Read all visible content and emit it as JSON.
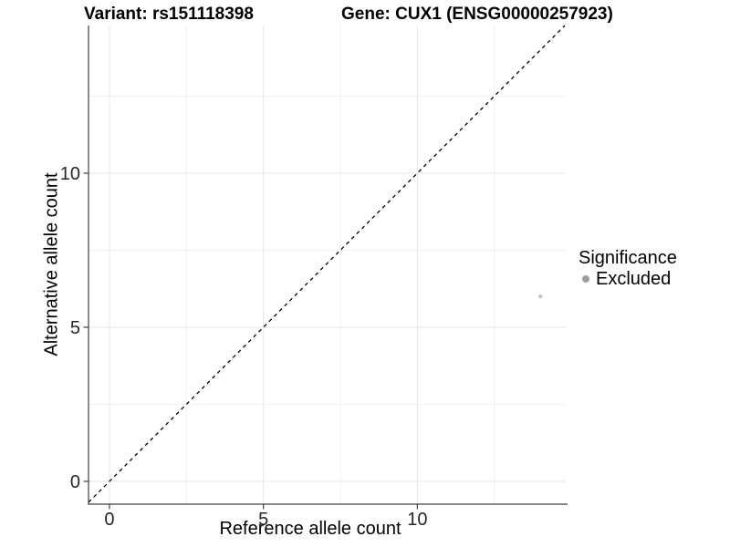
{
  "chart_data": {
    "type": "scatter",
    "titles": {
      "variant": "Variant: rs151118398",
      "gene": "Gene: CUX1 (ENSG00000257923)"
    },
    "xlabel": "Reference allele count",
    "ylabel": "Alternative allele count",
    "xlim": [
      -0.68,
      14.82
    ],
    "ylim": [
      -0.74,
      14.79
    ],
    "x_ticks": [
      0,
      5,
      10
    ],
    "y_ticks": [
      0,
      5,
      10
    ],
    "x_minor_gridlines": [
      2.5,
      7.5,
      12.5
    ],
    "y_minor_gridlines": [
      2.5,
      7.5,
      12.5
    ],
    "grid": "major+minor",
    "points": [
      {
        "x": 14,
        "y": 6,
        "significance": "Excluded",
        "color": "#c2c2c2",
        "radius": 2.2
      }
    ],
    "identity_line": {
      "slope": 1,
      "intercept": 0,
      "style": "dashed",
      "color": "#000000"
    },
    "legend": {
      "title": "Significance",
      "position": "right",
      "entries": [
        {
          "label": "Excluded",
          "color": "#9e9e9e"
        }
      ]
    },
    "theme": {
      "background": "#ffffff",
      "axis_line_color": "#404040",
      "tick_label_color": "#262626",
      "grid_major_color": "#e6e6e6",
      "grid_minor_color": "#f0f0f0"
    }
  }
}
